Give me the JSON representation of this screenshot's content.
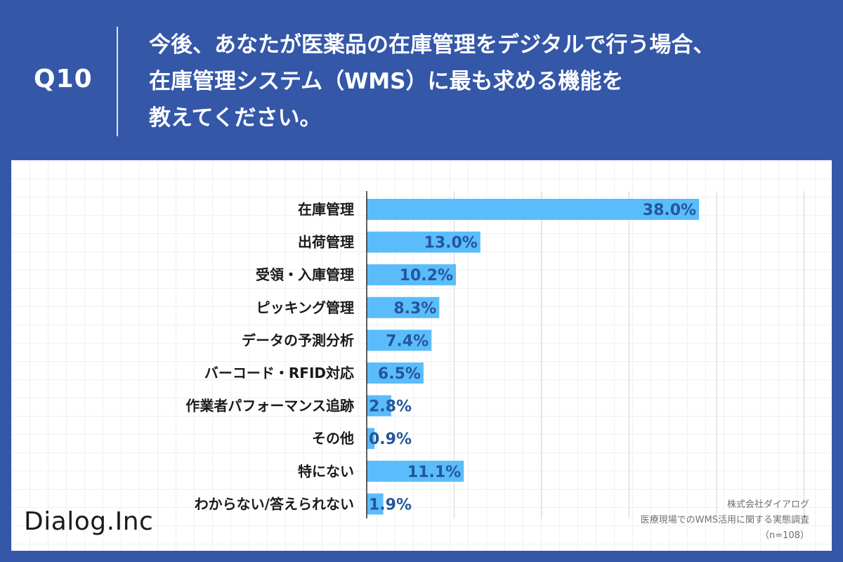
{
  "header": {
    "question_number": "Q10",
    "question_lines": [
      "今後、あなたが医薬品の在庫管理をデジタルで行う場合、",
      "在庫管理システム（WMS）に最も求める機能を",
      "教えてください。"
    ]
  },
  "colors": {
    "background": "#3457a8",
    "bar": "#5bbcfb",
    "value_text": "#23579b"
  },
  "chart_data": {
    "type": "bar",
    "orientation": "horizontal",
    "categories": [
      "在庫管理",
      "出荷管理",
      "受領・入庫管理",
      "ピッキング管理",
      "データの予測分析",
      "バーコード・RFID対応",
      "作業者パフォーマンス追跡",
      "その他",
      "特にない",
      "わからない/答えられない"
    ],
    "values": [
      38.0,
      13.0,
      10.2,
      8.3,
      7.4,
      6.5,
      2.8,
      0.9,
      11.1,
      1.9
    ],
    "value_labels": [
      "38.0%",
      "13.0%",
      "10.2%",
      "8.3%",
      "7.4%",
      "6.5%",
      "2.8%",
      "0.9%",
      "11.1%",
      "1.9%"
    ],
    "xlim": [
      0,
      50
    ],
    "grid_step": 10,
    "grid": true,
    "title": "",
    "xlabel": "",
    "ylabel": ""
  },
  "footer": {
    "logo": "Dialog.Inc",
    "source_lines": [
      "株式会社ダイアログ",
      "医療現場でのWMS活用に関する実態調査",
      "（n=108）"
    ]
  }
}
